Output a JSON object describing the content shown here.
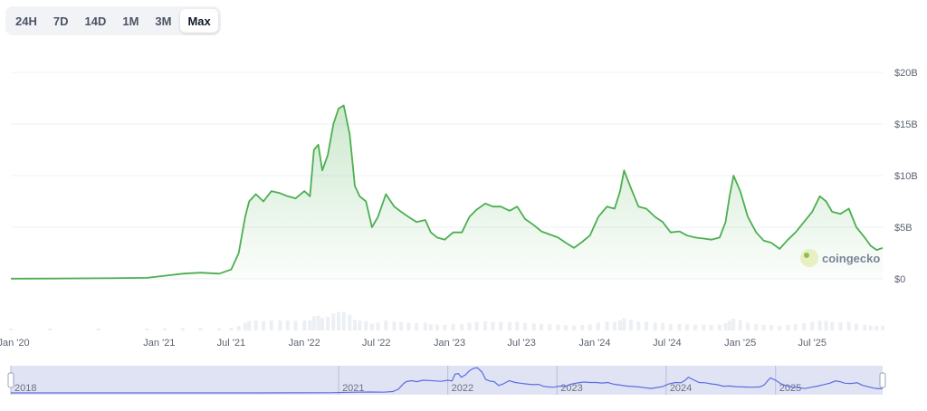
{
  "range_selector": {
    "tabs": [
      {
        "label": "24H",
        "active": false
      },
      {
        "label": "7D",
        "active": false
      },
      {
        "label": "14D",
        "active": false
      },
      {
        "label": "1M",
        "active": false
      },
      {
        "label": "3M",
        "active": false
      },
      {
        "label": "Max",
        "active": true
      }
    ]
  },
  "watermark": {
    "text": "coingecko",
    "icon": "gecko-logo-icon"
  },
  "colors": {
    "line": "#4caf50",
    "navigator_line": "#5b6ee1",
    "navigator_fill": "#dfe3f4"
  },
  "chart_data": {
    "type": "area",
    "title": "",
    "xlabel": "",
    "ylabel": "",
    "ylim": [
      0,
      20
    ],
    "yunit": "B USD",
    "ytick_values": [
      0,
      5,
      10,
      15,
      20
    ],
    "ytick_labels": [
      "$0",
      "$5B",
      "$10B",
      "$15B",
      "$20B"
    ],
    "xtick_dates": [
      "2020-01-01",
      "2021-01-01",
      "2021-07-01",
      "2022-01-01",
      "2022-07-01",
      "2023-01-01",
      "2023-07-01",
      "2024-01-01",
      "2024-07-01",
      "2025-01-01",
      "2025-07-01"
    ],
    "xtick_labels": [
      "Jan '20",
      "Jan '21",
      "Jul '21",
      "Jan '22",
      "Jul '22",
      "Jan '23",
      "Jul '23",
      "Jan '24",
      "Jul '24",
      "Jan '25",
      "Jul '25"
    ],
    "grid": true,
    "legend": "none",
    "series": [
      {
        "x": [
          "2019-12-25",
          "2020-04-01",
          "2020-08-01",
          "2020-12-01",
          "2021-01-15",
          "2021-03-01",
          "2021-04-15",
          "2021-06-01",
          "2021-07-01",
          "2021-07-20",
          "2021-08-05",
          "2021-08-15",
          "2021-09-01",
          "2021-09-20",
          "2021-10-10",
          "2021-11-01",
          "2021-11-20",
          "2021-12-10",
          "2022-01-01",
          "2022-01-15",
          "2022-01-25",
          "2022-02-05",
          "2022-02-15",
          "2022-03-01",
          "2022-03-15",
          "2022-03-28",
          "2022-04-10",
          "2022-04-25",
          "2022-05-08",
          "2022-05-20",
          "2022-06-05",
          "2022-06-20",
          "2022-07-05",
          "2022-07-25",
          "2022-08-15",
          "2022-09-01",
          "2022-09-20",
          "2022-10-10",
          "2022-11-01",
          "2022-11-15",
          "2022-12-01",
          "2022-12-20",
          "2023-01-10",
          "2023-02-01",
          "2023-02-20",
          "2023-03-10",
          "2023-04-01",
          "2023-04-20",
          "2023-05-10",
          "2023-06-01",
          "2023-06-20",
          "2023-07-10",
          "2023-08-01",
          "2023-08-20",
          "2023-09-10",
          "2023-10-01",
          "2023-10-20",
          "2023-11-10",
          "2023-12-01",
          "2023-12-20",
          "2024-01-10",
          "2024-02-01",
          "2024-02-20",
          "2024-03-05",
          "2024-03-15",
          "2024-04-01",
          "2024-04-20",
          "2024-05-10",
          "2024-06-01",
          "2024-06-20",
          "2024-07-10",
          "2024-08-01",
          "2024-08-20",
          "2024-09-10",
          "2024-10-01",
          "2024-10-20",
          "2024-11-10",
          "2024-11-25",
          "2024-12-05",
          "2024-12-15",
          "2025-01-01",
          "2025-01-20",
          "2025-02-10",
          "2025-03-01",
          "2025-03-20",
          "2025-04-10",
          "2025-05-01",
          "2025-05-20",
          "2025-06-10",
          "2025-07-01",
          "2025-07-20",
          "2025-08-05",
          "2025-08-20",
          "2025-09-10",
          "2025-10-01",
          "2025-10-20",
          "2025-11-10",
          "2025-11-25",
          "2025-12-10",
          "2025-12-25"
        ],
        "y": [
          0.02,
          0.03,
          0.05,
          0.1,
          0.3,
          0.5,
          0.6,
          0.5,
          0.9,
          2.5,
          6.0,
          7.5,
          8.2,
          7.5,
          8.5,
          8.3,
          8.0,
          7.8,
          8.5,
          8.0,
          12.5,
          13.0,
          10.5,
          12.0,
          15.0,
          16.5,
          16.8,
          14.0,
          9.0,
          8.0,
          7.5,
          5.0,
          6.0,
          8.2,
          7.0,
          6.5,
          6.0,
          5.5,
          5.7,
          4.5,
          4.0,
          3.8,
          4.5,
          4.5,
          6.0,
          6.7,
          7.3,
          7.0,
          7.0,
          6.6,
          7.0,
          5.8,
          5.2,
          4.6,
          4.3,
          4.0,
          3.5,
          3.0,
          3.6,
          4.2,
          6.0,
          7.0,
          6.8,
          8.5,
          10.5,
          8.8,
          7.0,
          6.8,
          6.0,
          5.5,
          4.5,
          4.6,
          4.2,
          4.0,
          3.9,
          3.8,
          4.0,
          5.5,
          8.0,
          10.0,
          8.5,
          6.0,
          4.5,
          3.7,
          3.5,
          2.9,
          3.8,
          4.5,
          5.5,
          6.5,
          8.0,
          7.5,
          6.5,
          6.3,
          6.8,
          5.0,
          4.0,
          3.2,
          2.8,
          3.0
        ]
      }
    ],
    "navigator": {
      "xtick_labels": [
        "2018",
        "2021",
        "2022",
        "2023",
        "2024",
        "2025"
      ],
      "xtick_dates": [
        "2018-01-01",
        "2021-01-01",
        "2022-01-01",
        "2023-01-01",
        "2024-01-01",
        "2025-01-01"
      ]
    }
  }
}
